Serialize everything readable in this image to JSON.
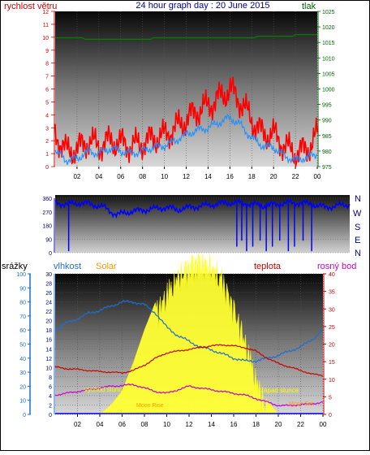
{
  "header": {
    "left_label": "rychlost větru",
    "title": "24 hour graph day : 20 June 2015",
    "right_label": "tlak"
  },
  "wind_dir_labels": [
    "N",
    "W",
    "S",
    "E",
    "N"
  ],
  "bottom_labels": {
    "rain": "srážky",
    "humidity": "vlhkost",
    "solar": "Solar",
    "temp": "teplota",
    "dew": "rosný bod"
  },
  "annotations": {
    "sunrise": "východ slunce",
    "sunset": "západ slunce",
    "moon_rise": "Moon Rise",
    "moon_set": "Moon Set"
  },
  "colors": {
    "wind_gust": "#ff0000",
    "wind_avg": "#1e90ff",
    "pressure": "#008000",
    "direction": "#0000ff",
    "humidity": "#1e6fd0",
    "temperature": "#cc0000",
    "dew_point": "#cc00cc",
    "solar": "#ffff33",
    "rain": "#0000ff"
  },
  "chart_data": [
    {
      "type": "line",
      "name": "wind",
      "x_ticks": [
        "02",
        "04",
        "06",
        "08",
        "10",
        "12",
        "14",
        "16",
        "18",
        "20",
        "22",
        "00"
      ],
      "left_axis": {
        "ylim": [
          0,
          12
        ],
        "ticks": [
          0,
          1,
          2,
          3,
          4,
          5,
          6,
          7,
          8,
          9,
          10,
          11,
          12
        ]
      },
      "right_axis": {
        "ylim": [
          975,
          1025
        ],
        "ticks": [
          975,
          980,
          985,
          990,
          995,
          1000,
          1005,
          1010,
          1015,
          1020,
          1025
        ]
      },
      "series": [
        {
          "name": "gust",
          "hours": [
            0,
            1,
            2,
            3,
            4,
            5,
            6,
            7,
            8,
            9,
            10,
            11,
            12,
            13,
            14,
            15,
            16,
            17,
            18,
            19,
            20,
            21,
            22,
            23,
            24
          ],
          "values": [
            2.5,
            1.2,
            1.3,
            2.0,
            1.6,
            2.0,
            1.8,
            1.6,
            1.8,
            2.2,
            2.4,
            3.0,
            3.6,
            4.3,
            4.7,
            5.3,
            6.0,
            5.0,
            3.6,
            2.5,
            2.5,
            1.6,
            1.0,
            1.3,
            2.5
          ]
        },
        {
          "name": "avg",
          "hours": [
            0,
            1,
            2,
            3,
            4,
            5,
            6,
            7,
            8,
            9,
            10,
            11,
            12,
            13,
            14,
            15,
            16,
            17,
            18,
            19,
            20,
            21,
            22,
            23,
            24
          ],
          "values": [
            1.2,
            0.5,
            0.6,
            1.2,
            1.0,
            1.4,
            1.2,
            1.0,
            1.2,
            1.5,
            1.6,
            2.0,
            2.5,
            2.8,
            3.0,
            3.4,
            3.8,
            3.2,
            2.2,
            1.6,
            1.5,
            0.8,
            0.5,
            0.7,
            1.0
          ]
        },
        {
          "name": "pressure",
          "hours": [
            0,
            5,
            8,
            10,
            16,
            17,
            20,
            24
          ],
          "values": [
            1016.5,
            1016.0,
            1016.0,
            1016.5,
            1016.5,
            1016.5,
            1017.0,
            1017.5
          ]
        }
      ]
    },
    {
      "type": "line",
      "name": "wind direction",
      "ylim": [
        0,
        360
      ],
      "ticks": [
        0,
        90,
        180,
        270,
        360
      ],
      "x_ticks": [
        "02",
        "04",
        "06",
        "08",
        "10",
        "12",
        "14",
        "16",
        "18",
        "20",
        "22",
        "00"
      ],
      "series": [
        {
          "name": "direction",
          "hours": [
            0,
            1,
            2,
            3,
            4,
            5,
            6,
            7,
            8,
            9,
            10,
            11,
            12,
            13,
            14,
            15,
            16,
            17,
            18,
            19,
            20,
            21,
            22,
            23,
            24
          ],
          "values": [
            330,
            320,
            330,
            320,
            300,
            250,
            270,
            280,
            290,
            300,
            285,
            300,
            310,
            320,
            330,
            330,
            320,
            310,
            320,
            330,
            330,
            320,
            300,
            310,
            320
          ]
        }
      ]
    },
    {
      "type": "line",
      "name": "rain humidity solar temperature",
      "x_ticks": [
        "02",
        "04",
        "06",
        "08",
        "10",
        "12",
        "14",
        "16",
        "18",
        "20",
        "22",
        "00"
      ],
      "rain_axis": {
        "ylim": [
          0,
          100
        ],
        "ticks": [
          0,
          10,
          20,
          30,
          40,
          50,
          60,
          70,
          80,
          90,
          100
        ]
      },
      "humidity_axis": {
        "ylim": [
          0,
          30
        ],
        "ticks": [
          0,
          2,
          4,
          6,
          8,
          10,
          12,
          14,
          16,
          18,
          20,
          22,
          24,
          26,
          28,
          30
        ]
      },
      "temp_axis": {
        "ylim": [
          0,
          40
        ],
        "ticks": [
          0,
          5,
          10,
          15,
          20,
          25,
          30,
          35,
          40
        ]
      },
      "series": [
        {
          "name": "humidity",
          "hours": [
            0,
            1,
            2,
            3,
            4,
            5,
            6,
            7,
            8,
            9,
            10,
            11,
            12,
            13,
            14,
            15,
            16,
            17,
            18,
            19,
            20,
            21,
            22,
            23,
            24
          ],
          "values": [
            60,
            65,
            68,
            72,
            74,
            77,
            80,
            80,
            78,
            72,
            62,
            56,
            52,
            48,
            46,
            43,
            40,
            38,
            38,
            40,
            42,
            45,
            48,
            53,
            60
          ]
        },
        {
          "name": "temperature",
          "hours": [
            0,
            1,
            2,
            3,
            4,
            5,
            6,
            7,
            8,
            9,
            10,
            11,
            12,
            13,
            14,
            15,
            16,
            17,
            18,
            19,
            20,
            21,
            22,
            23,
            24
          ],
          "values": [
            13.5,
            13.0,
            12.8,
            12.5,
            12.2,
            12.0,
            11.8,
            12.5,
            14.0,
            16.0,
            17.5,
            18.0,
            18.5,
            19.0,
            19.5,
            19.8,
            19.5,
            19.0,
            18.0,
            16.0,
            14.5,
            13.5,
            12.5,
            11.5,
            11.0
          ]
        },
        {
          "name": "dew_point",
          "hours": [
            0,
            1,
            2,
            3,
            4,
            5,
            6,
            7,
            8,
            9,
            10,
            11,
            12,
            13,
            14,
            15,
            16,
            17,
            18,
            19,
            20,
            21,
            22,
            23,
            24
          ],
          "values": [
            5.5,
            6.0,
            6.5,
            7.0,
            7.5,
            8.0,
            8.2,
            8.5,
            7.5,
            6.5,
            6.0,
            7.0,
            8.0,
            7.5,
            7.0,
            6.5,
            6.0,
            5.5,
            4.5,
            3.5,
            2.5,
            2.5,
            2.8,
            3.0,
            3.5
          ]
        },
        {
          "name": "solar",
          "hours": [
            4,
            5,
            6,
            7,
            8,
            9,
            10,
            11,
            12,
            13,
            14,
            15,
            16,
            17,
            18,
            19,
            20
          ],
          "values": [
            0,
            2,
            5,
            11,
            18,
            24,
            28,
            32,
            34,
            35,
            34,
            31,
            25,
            18,
            10,
            3,
            0
          ]
        }
      ]
    }
  ]
}
